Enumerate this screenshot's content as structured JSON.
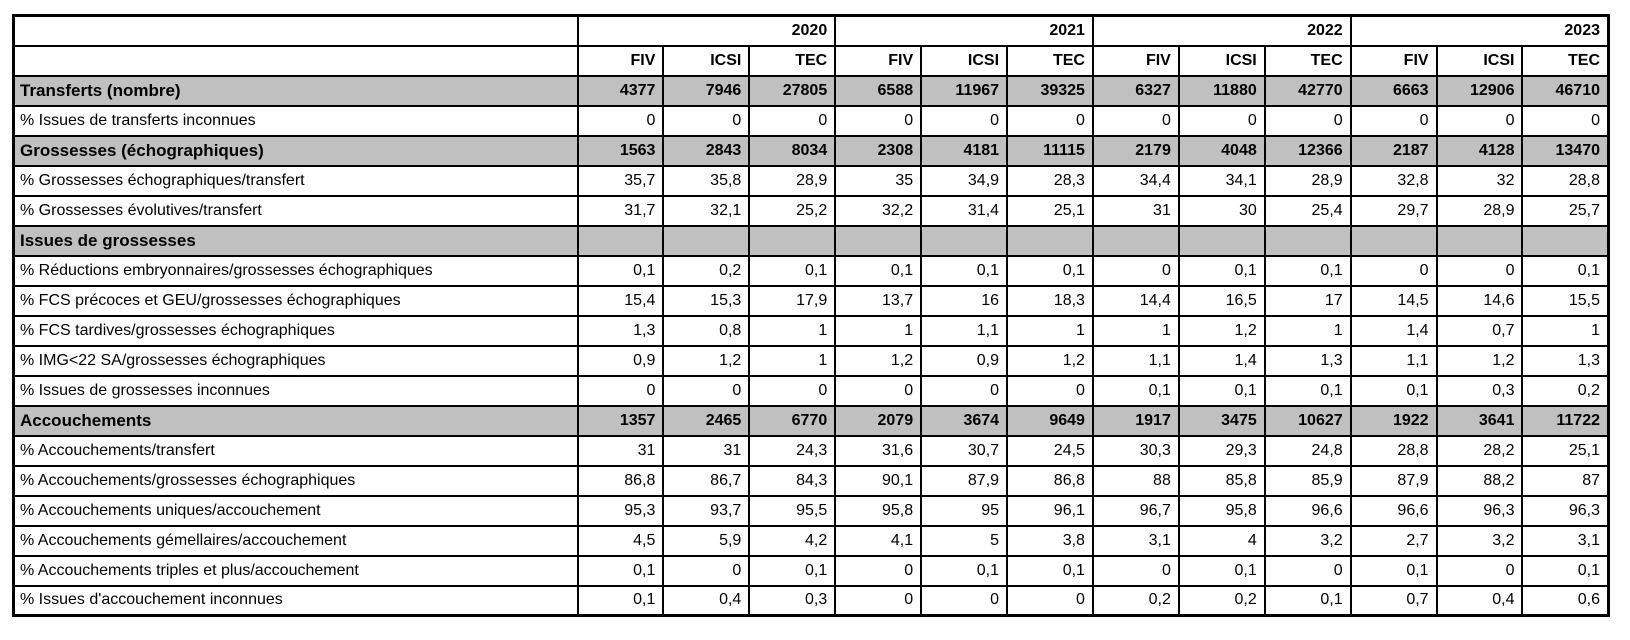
{
  "colors": {
    "section_bg": "#c0c0c0",
    "border": "#000000",
    "background": "#ffffff"
  },
  "chart_data": {
    "type": "table",
    "year_groups": [
      "2020",
      "2021",
      "2022",
      "2023"
    ],
    "sub_headers": [
      "FIV",
      "ICSI",
      "TEC"
    ],
    "rows": [
      {
        "label": "Transferts (nombre)",
        "section": true,
        "values": [
          "4377",
          "7946",
          "27805",
          "6588",
          "11967",
          "39325",
          "6327",
          "11880",
          "42770",
          "6663",
          "12906",
          "46710"
        ]
      },
      {
        "label": "% Issues de transferts inconnues",
        "section": false,
        "values": [
          "0",
          "0",
          "0",
          "0",
          "0",
          "0",
          "0",
          "0",
          "0",
          "0",
          "0",
          "0"
        ]
      },
      {
        "label": "Grossesses (échographiques)",
        "section": true,
        "values": [
          "1563",
          "2843",
          "8034",
          "2308",
          "4181",
          "11115",
          "2179",
          "4048",
          "12366",
          "2187",
          "4128",
          "13470"
        ]
      },
      {
        "label": "% Grossesses échographiques/transfert",
        "section": false,
        "values": [
          "35,7",
          "35,8",
          "28,9",
          "35",
          "34,9",
          "28,3",
          "34,4",
          "34,1",
          "28,9",
          "32,8",
          "32",
          "28,8"
        ]
      },
      {
        "label": "% Grossesses évolutives/transfert",
        "section": false,
        "values": [
          "31,7",
          "32,1",
          "25,2",
          "32,2",
          "31,4",
          "25,1",
          "31",
          "30",
          "25,4",
          "29,7",
          "28,9",
          "25,7"
        ]
      },
      {
        "label": "Issues de grossesses",
        "section": true,
        "values": [
          "",
          "",
          "",
          "",
          "",
          "",
          "",
          "",
          "",
          "",
          "",
          ""
        ]
      },
      {
        "label": "% Réductions embryonnaires/grossesses échographiques",
        "section": false,
        "values": [
          "0,1",
          "0,2",
          "0,1",
          "0,1",
          "0,1",
          "0,1",
          "0",
          "0,1",
          "0,1",
          "0",
          "0",
          "0,1"
        ]
      },
      {
        "label": "% FCS précoces et GEU/grossesses échographiques",
        "section": false,
        "values": [
          "15,4",
          "15,3",
          "17,9",
          "13,7",
          "16",
          "18,3",
          "14,4",
          "16,5",
          "17",
          "14,5",
          "14,6",
          "15,5"
        ]
      },
      {
        "label": "% FCS tardives/grossesses échographiques",
        "section": false,
        "values": [
          "1,3",
          "0,8",
          "1",
          "1",
          "1,1",
          "1",
          "1",
          "1,2",
          "1",
          "1,4",
          "0,7",
          "1"
        ]
      },
      {
        "label": "% IMG<22 SA/grossesses échographiques",
        "section": false,
        "values": [
          "0,9",
          "1,2",
          "1",
          "1,2",
          "0,9",
          "1,2",
          "1,1",
          "1,4",
          "1,3",
          "1,1",
          "1,2",
          "1,3"
        ]
      },
      {
        "label": "% Issues de grossesses inconnues",
        "section": false,
        "values": [
          "0",
          "0",
          "0",
          "0",
          "0",
          "0",
          "0,1",
          "0,1",
          "0,1",
          "0,1",
          "0,3",
          "0,2"
        ]
      },
      {
        "label": "Accouchements",
        "section": true,
        "values": [
          "1357",
          "2465",
          "6770",
          "2079",
          "3674",
          "9649",
          "1917",
          "3475",
          "10627",
          "1922",
          "3641",
          "11722"
        ]
      },
      {
        "label": "% Accouchements/transfert",
        "section": false,
        "values": [
          "31",
          "31",
          "24,3",
          "31,6",
          "30,7",
          "24,5",
          "30,3",
          "29,3",
          "24,8",
          "28,8",
          "28,2",
          "25,1"
        ]
      },
      {
        "label": "% Accouchements/grossesses échographiques",
        "section": false,
        "values": [
          "86,8",
          "86,7",
          "84,3",
          "90,1",
          "87,9",
          "86,8",
          "88",
          "85,8",
          "85,9",
          "87,9",
          "88,2",
          "87"
        ]
      },
      {
        "label": "% Accouchements uniques/accouchement",
        "section": false,
        "values": [
          "95,3",
          "93,7",
          "95,5",
          "95,8",
          "95",
          "96,1",
          "96,7",
          "95,8",
          "96,6",
          "96,6",
          "96,3",
          "96,3"
        ]
      },
      {
        "label": "% Accouchements gémellaires/accouchement",
        "section": false,
        "values": [
          "4,5",
          "5,9",
          "4,2",
          "4,1",
          "5",
          "3,8",
          "3,1",
          "4",
          "3,2",
          "2,7",
          "3,2",
          "3,1"
        ]
      },
      {
        "label": "% Accouchements triples et plus/accouchement",
        "section": false,
        "values": [
          "0,1",
          "0",
          "0,1",
          "0",
          "0,1",
          "0,1",
          "0",
          "0,1",
          "0",
          "0,1",
          "0",
          "0,1"
        ]
      },
      {
        "label": "% Issues d'accouchement inconnues",
        "section": false,
        "values": [
          "0,1",
          "0,4",
          "0,3",
          "0",
          "0",
          "0",
          "0,2",
          "0,2",
          "0,1",
          "0,7",
          "0,4",
          "0,6"
        ]
      }
    ]
  }
}
